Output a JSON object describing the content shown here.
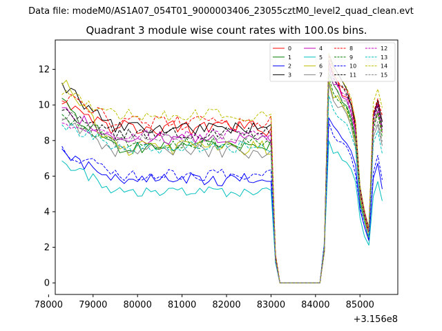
{
  "chart_data": {
    "type": "line",
    "suptitle": "Data file: modeM0/AS1A07_054T01_9000003406_23055cztM0_level2_quad_clean.evt",
    "title": "Quadrant 3 module wise count rates with 100.0s bins.",
    "xlabel": "",
    "ylabel": "",
    "x_offset_label": "+3.156e8",
    "xlim": [
      78150,
      85850
    ],
    "ylim": [
      -0.65,
      13.65
    ],
    "x_ticks": [
      78000,
      79000,
      80000,
      81000,
      82000,
      83000,
      84000,
      85000
    ],
    "y_ticks": [
      0,
      2,
      4,
      6,
      8,
      10,
      12
    ],
    "x_tick_labels": [
      "78000",
      "79000",
      "80000",
      "81000",
      "82000",
      "83000",
      "84000",
      "85000"
    ],
    "y_tick_labels": [
      "0",
      "2",
      "4",
      "6",
      "8",
      "10",
      "12"
    ],
    "legend_position": "upper right",
    "x_start": 78300,
    "x_step": 100,
    "n_bins": 73,
    "series": [
      {
        "name": "0",
        "color": "#ff0000",
        "dash": false,
        "plateau": 8.7,
        "start": 10.4,
        "noise": 0.45,
        "peak": 12.4,
        "dip": 2.8,
        "end": 9.0
      },
      {
        "name": "1",
        "color": "#008000",
        "dash": false,
        "plateau": 7.7,
        "start": 10.0,
        "noise": 0.4,
        "peak": 11.8,
        "dip": 2.5,
        "end": 8.6
      },
      {
        "name": "2",
        "color": "#0000ff",
        "dash": false,
        "plateau": 5.8,
        "start": 7.3,
        "noise": 0.35,
        "peak": 9.3,
        "dip": 2.3,
        "end": 5.4
      },
      {
        "name": "3",
        "color": "#000000",
        "dash": false,
        "plateau": 8.7,
        "start": 11.1,
        "noise": 0.35,
        "peak": 12.9,
        "dip": 3.0,
        "end": 9.0
      },
      {
        "name": "4",
        "color": "#bf00bf",
        "dash": false,
        "plateau": 8.1,
        "start": 9.8,
        "noise": 0.35,
        "peak": 12.2,
        "dip": 2.9,
        "end": 8.8
      },
      {
        "name": "5",
        "color": "#00bfbf",
        "dash": false,
        "plateau": 5.1,
        "start": 6.9,
        "noise": 0.3,
        "peak": 8.0,
        "dip": 2.0,
        "end": 4.5
      },
      {
        "name": "6",
        "color": "#bfbf00",
        "dash": false,
        "plateau": 7.6,
        "start": 11.3,
        "noise": 0.45,
        "peak": 11.4,
        "dip": 2.6,
        "end": 8.4
      },
      {
        "name": "7",
        "color": "#808080",
        "dash": false,
        "plateau": 7.4,
        "start": 9.4,
        "noise": 0.4,
        "peak": 11.2,
        "dip": 2.5,
        "end": 7.8
      },
      {
        "name": "8",
        "color": "#ff0000",
        "dash": true,
        "plateau": 9.0,
        "start": 10.6,
        "noise": 0.4,
        "peak": 12.8,
        "dip": 3.0,
        "end": 9.3
      },
      {
        "name": "9",
        "color": "#008000",
        "dash": true,
        "plateau": 7.9,
        "start": 9.2,
        "noise": 0.35,
        "peak": 11.6,
        "dip": 2.6,
        "end": 8.2
      },
      {
        "name": "10",
        "color": "#0000ff",
        "dash": true,
        "plateau": 6.1,
        "start": 7.5,
        "noise": 0.35,
        "peak": 9.0,
        "dip": 2.4,
        "end": 5.9
      },
      {
        "name": "11",
        "color": "#000000",
        "dash": true,
        "plateau": 8.4,
        "start": 9.6,
        "noise": 0.35,
        "peak": 12.5,
        "dip": 2.9,
        "end": 8.7
      },
      {
        "name": "12",
        "color": "#bf00bf",
        "dash": true,
        "plateau": 8.3,
        "start": 9.0,
        "noise": 0.35,
        "peak": 12.4,
        "dip": 2.9,
        "end": 8.5
      },
      {
        "name": "13",
        "color": "#00bfbf",
        "dash": true,
        "plateau": 7.6,
        "start": 9.0,
        "noise": 0.35,
        "peak": 10.5,
        "dip": 2.5,
        "end": 7.4
      },
      {
        "name": "14",
        "color": "#bfbf00",
        "dash": true,
        "plateau": 9.4,
        "start": 10.8,
        "noise": 0.4,
        "peak": 12.9,
        "dip": 3.0,
        "end": 9.8
      },
      {
        "name": "15",
        "color": "#808080",
        "dash": true,
        "plateau": 8.0,
        "start": 9.5,
        "noise": 0.35,
        "peak": 12.0,
        "dip": 2.8,
        "end": 8.0
      }
    ]
  }
}
